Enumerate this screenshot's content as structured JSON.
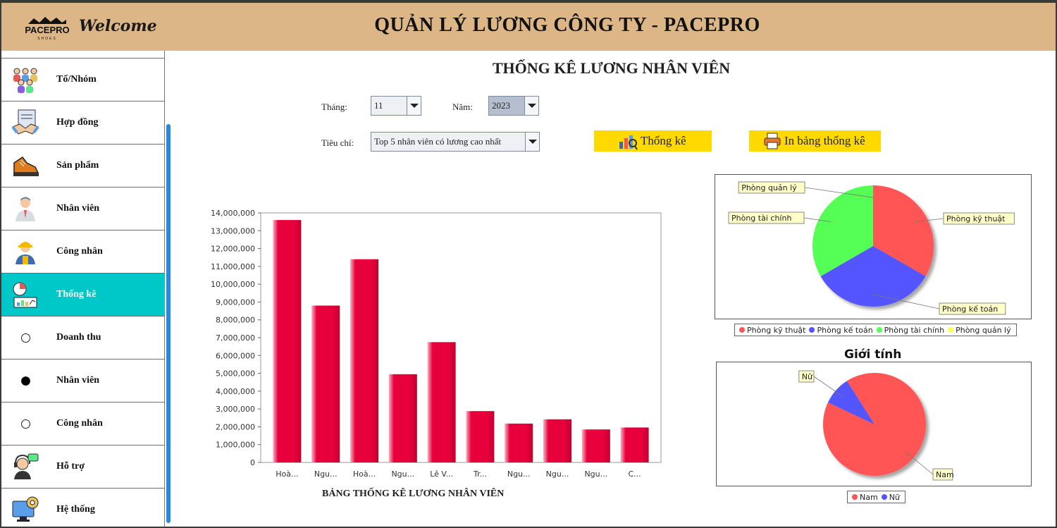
{
  "header": {
    "logo_text": "PACEPRO",
    "logo_sub": "SHOES",
    "welcome": "Welcome",
    "app_title": "QUẢN LÝ LƯƠNG CÔNG TY - PACEPRO"
  },
  "sidebar": {
    "items": [
      {
        "label": "Tổ/Nhóm",
        "icon": "team-icon"
      },
      {
        "label": "Hợp đồng",
        "icon": "contract-handshake-icon"
      },
      {
        "label": "Sản phẩm",
        "icon": "shoe-icon"
      },
      {
        "label": "Nhân viên",
        "icon": "employee-icon"
      },
      {
        "label": "Công nhân",
        "icon": "worker-icon"
      },
      {
        "label": "Thống kê",
        "icon": "statistics-icon",
        "active": true
      },
      {
        "label": "Doanh thu",
        "radio": true,
        "selected": false
      },
      {
        "label": "Nhân viên",
        "radio": true,
        "selected": true
      },
      {
        "label": "Công nhân",
        "radio": true,
        "selected": false
      },
      {
        "label": "Hỗ trợ",
        "icon": "support-icon"
      },
      {
        "label": "Hệ thống",
        "icon": "system-settings-icon"
      }
    ],
    "active_color": "#00c8c8"
  },
  "main": {
    "title": "THỐNG KÊ LƯƠNG NHÂN VIÊN",
    "month_label": "Tháng:",
    "month_value": "11",
    "year_label": "Năm:",
    "year_value": "2023",
    "criteria_label": "Tiêu chí:",
    "criteria_value": "Top 5 nhân viên có lương cao nhất",
    "stats_button": "Thống kê",
    "print_button": "In bảng thống kê",
    "bar_caption": "BẢNG THỐNG KÊ LƯƠNG NHÂN VIÊN"
  },
  "chart_data": [
    {
      "type": "bar",
      "categories": [
        "Hoà...",
        "Ngu...",
        "Hoà...",
        "Ngu...",
        "Lê V...",
        "Tr...",
        "Ngu...",
        "Ngu...",
        "Ngu...",
        "C..."
      ],
      "values": [
        13600000,
        8800000,
        11400000,
        4950000,
        6750000,
        2880000,
        2180000,
        2420000,
        1850000,
        1960000
      ],
      "ylim": [
        0,
        14000000
      ],
      "yticks": [
        "0",
        "1,000,000",
        "2,000,000",
        "3,000,000",
        "4,000,000",
        "5,000,000",
        "6,000,000",
        "7,000,000",
        "8,000,000",
        "9,000,000",
        "10,000,000",
        "11,000,000",
        "12,000,000",
        "13,000,000",
        "14,000,000"
      ],
      "color": "#e8003d",
      "title": "",
      "xlabel": "",
      "ylabel": ""
    },
    {
      "type": "pie",
      "labels": [
        "Phòng kỹ thuật",
        "Phòng kế toán",
        "Phòng tài chính",
        "Phòng quản lý"
      ],
      "values": [
        33.3,
        33.3,
        33.3,
        0
      ],
      "colors": [
        "#ff5555",
        "#5555ff",
        "#55ff55",
        "#ffff55"
      ],
      "legend": "bottom",
      "title": ""
    },
    {
      "type": "pie",
      "title": "Giới tính",
      "labels": [
        "Nam",
        "Nữ"
      ],
      "values": [
        91,
        9
      ],
      "colors": [
        "#ff5555",
        "#5555ff"
      ],
      "legend": "bottom"
    }
  ]
}
